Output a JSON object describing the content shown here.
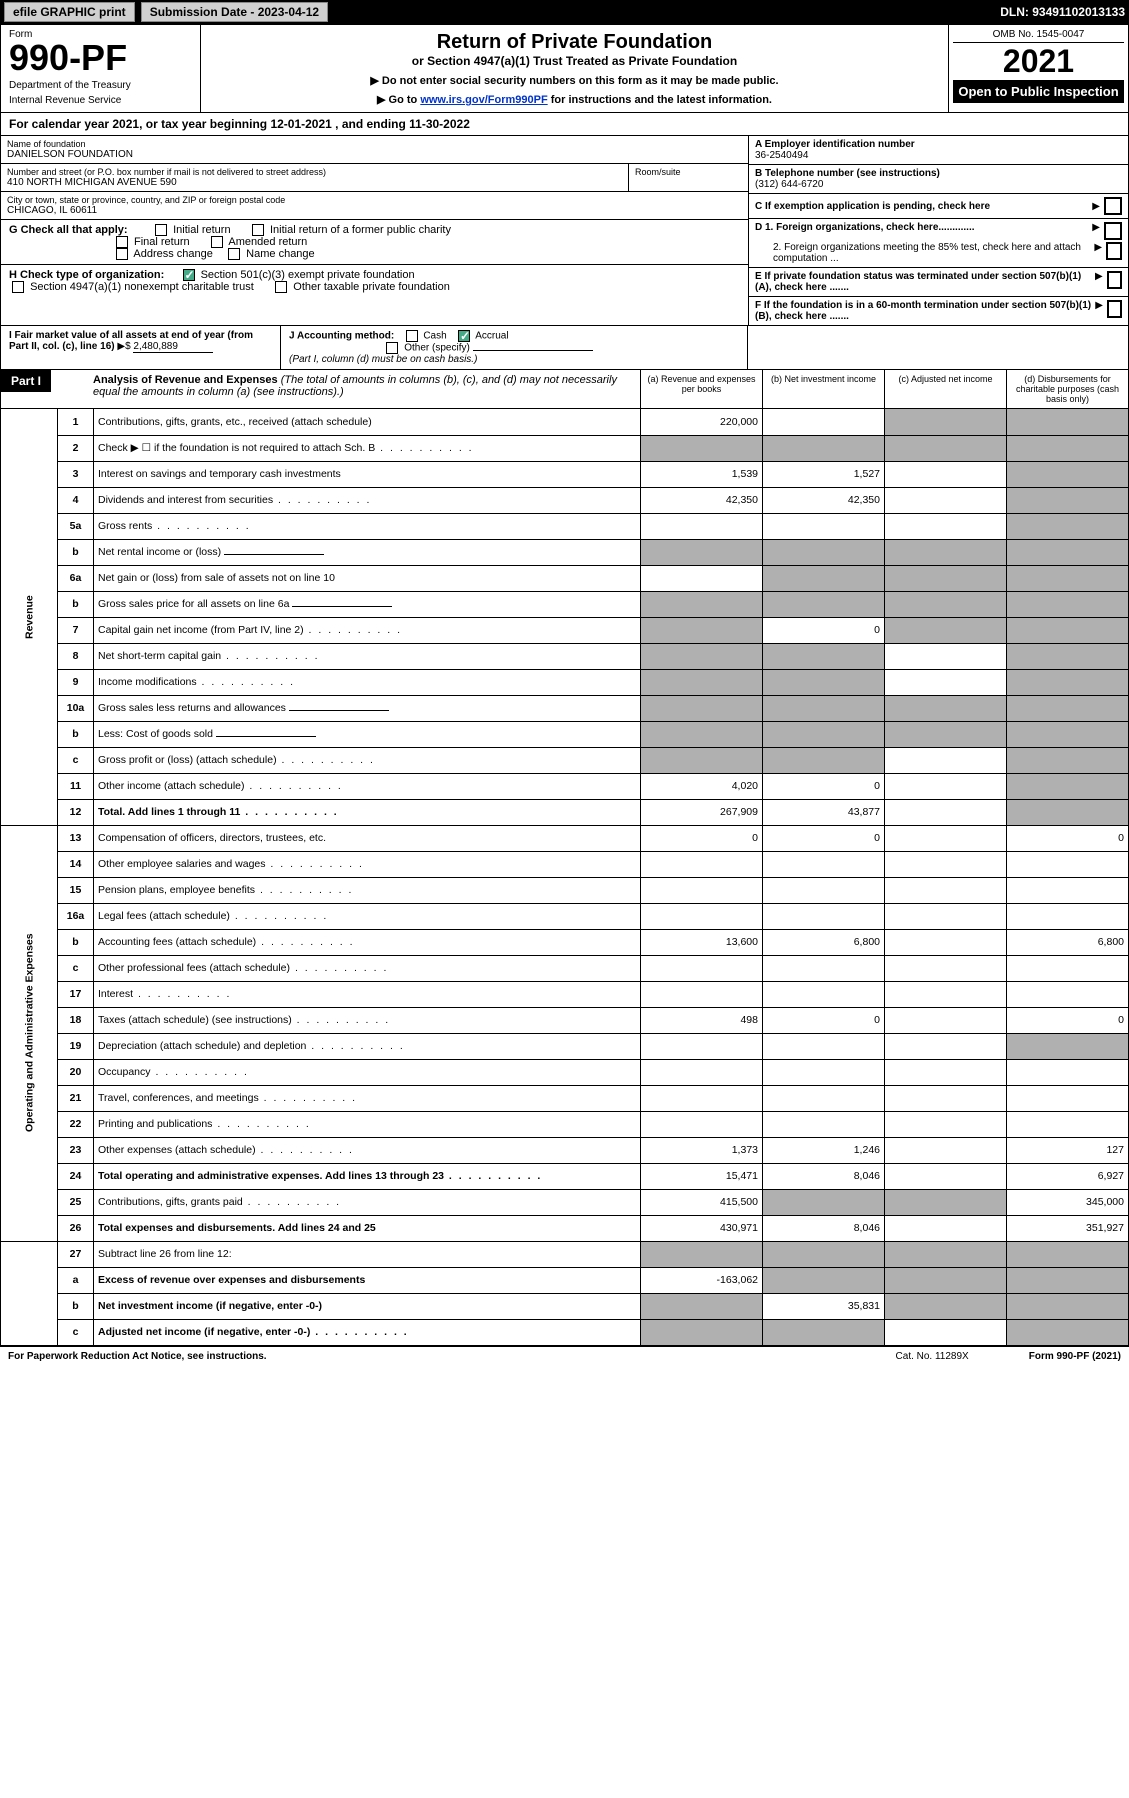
{
  "topbar": {
    "efile": "efile GRAPHIC print",
    "submission": "Submission Date - 2023-04-12",
    "dln": "DLN: 93491102013133"
  },
  "header": {
    "form_label": "Form",
    "form_num": "990-PF",
    "dept": "Department of the Treasury",
    "irs": "Internal Revenue Service",
    "title": "Return of Private Foundation",
    "subtitle": "or Section 4947(a)(1) Trust Treated as Private Foundation",
    "note1": "▶ Do not enter social security numbers on this form as it may be made public.",
    "note2_pre": "▶ Go to ",
    "note2_link": "www.irs.gov/Form990PF",
    "note2_post": " for instructions and the latest information.",
    "omb": "OMB No. 1545-0047",
    "year": "2021",
    "inspect": "Open to Public Inspection"
  },
  "calyear": "For calendar year 2021, or tax year beginning 12-01-2021                   , and ending 11-30-2022",
  "foundation": {
    "name_label": "Name of foundation",
    "name": "DANIELSON FOUNDATION",
    "addr_label": "Number and street (or P.O. box number if mail is not delivered to street address)",
    "addr": "410 NORTH MICHIGAN AVENUE 590",
    "room_label": "Room/suite",
    "city_label": "City or town, state or province, country, and ZIP or foreign postal code",
    "city": "CHICAGO, IL  60611",
    "ein_label": "A Employer identification number",
    "ein": "36-2540494",
    "phone_label": "B Telephone number (see instructions)",
    "phone": "(312) 644-6720",
    "c_label": "C If exemption application is pending, check here",
    "d1": "D 1. Foreign organizations, check here.............",
    "d2": "2. Foreign organizations meeting the 85% test, check here and attach computation ...",
    "e_label": "E  If private foundation status was terminated under section 507(b)(1)(A), check here .......",
    "f_label": "F  If the foundation is in a 60-month termination under section 507(b)(1)(B), check here .......",
    "g_label": "G Check all that apply:",
    "g_opts": [
      "Initial return",
      "Initial return of a former public charity",
      "Final return",
      "Amended return",
      "Address change",
      "Name change"
    ],
    "h_label": "H Check type of organization:",
    "h_opt1": "Section 501(c)(3) exempt private foundation",
    "h_opt2": "Section 4947(a)(1) nonexempt charitable trust",
    "h_opt3": "Other taxable private foundation",
    "i_label": "I Fair market value of all assets at end of year (from Part II, col. (c), line 16)",
    "i_value": "2,480,889",
    "j_label": "J Accounting method:",
    "j_cash": "Cash",
    "j_accrual": "Accrual",
    "j_other": "Other (specify)",
    "j_note": "(Part I, column (d) must be on cash basis.)"
  },
  "part1": {
    "title": "Part I",
    "heading": "Analysis of Revenue and Expenses",
    "heading_note": " (The total of amounts in columns (b), (c), and (d) may not necessarily equal the amounts in column (a) (see instructions).)",
    "col_a": "(a)   Revenue and expenses per books",
    "col_b": "(b)   Net investment income",
    "col_c": "(c)   Adjusted net income",
    "col_d": "(d)  Disbursements for charitable purposes (cash basis only)"
  },
  "side_labels": {
    "revenue": "Revenue",
    "expenses": "Operating and Administrative Expenses"
  },
  "rows": [
    {
      "n": "1",
      "d": "Contributions, gifts, grants, etc., received (attach schedule)",
      "a": "220,000",
      "b": "",
      "c": "shaded",
      "dd": "shaded"
    },
    {
      "n": "2",
      "d": "Check ▶ ☐ if the foundation is not required to attach Sch. B",
      "a": "shaded",
      "b": "shaded",
      "c": "shaded",
      "dd": "shaded",
      "dots": true
    },
    {
      "n": "3",
      "d": "Interest on savings and temporary cash investments",
      "a": "1,539",
      "b": "1,527",
      "c": "",
      "dd": "shaded"
    },
    {
      "n": "4",
      "d": "Dividends and interest from securities",
      "a": "42,350",
      "b": "42,350",
      "c": "",
      "dd": "shaded",
      "dots": true
    },
    {
      "n": "5a",
      "d": "Gross rents",
      "a": "",
      "b": "",
      "c": "",
      "dd": "shaded",
      "dots": true
    },
    {
      "n": "b",
      "d": "Net rental income or (loss)",
      "a": "shaded",
      "b": "shaded",
      "c": "shaded",
      "dd": "shaded",
      "inline": true
    },
    {
      "n": "6a",
      "d": "Net gain or (loss) from sale of assets not on line 10",
      "a": "",
      "b": "shaded",
      "c": "shaded",
      "dd": "shaded"
    },
    {
      "n": "b",
      "d": "Gross sales price for all assets on line 6a",
      "a": "shaded",
      "b": "shaded",
      "c": "shaded",
      "dd": "shaded",
      "inline": true
    },
    {
      "n": "7",
      "d": "Capital gain net income (from Part IV, line 2)",
      "a": "shaded",
      "b": "0",
      "c": "shaded",
      "dd": "shaded",
      "dots": true
    },
    {
      "n": "8",
      "d": "Net short-term capital gain",
      "a": "shaded",
      "b": "shaded",
      "c": "",
      "dd": "shaded",
      "dots": true
    },
    {
      "n": "9",
      "d": "Income modifications",
      "a": "shaded",
      "b": "shaded",
      "c": "",
      "dd": "shaded",
      "dots": true
    },
    {
      "n": "10a",
      "d": "Gross sales less returns and allowances",
      "a": "shaded",
      "b": "shaded",
      "c": "shaded",
      "dd": "shaded",
      "inline": true
    },
    {
      "n": "b",
      "d": "Less: Cost of goods sold",
      "a": "shaded",
      "b": "shaded",
      "c": "shaded",
      "dd": "shaded",
      "inline": true,
      "dots": true
    },
    {
      "n": "c",
      "d": "Gross profit or (loss) (attach schedule)",
      "a": "shaded",
      "b": "shaded",
      "c": "",
      "dd": "shaded",
      "dots": true
    },
    {
      "n": "11",
      "d": "Other income (attach schedule)",
      "a": "4,020",
      "b": "0",
      "c": "",
      "dd": "shaded",
      "dots": true
    },
    {
      "n": "12",
      "d": "Total. Add lines 1 through 11",
      "a": "267,909",
      "b": "43,877",
      "c": "",
      "dd": "shaded",
      "bold": true,
      "dots": true
    }
  ],
  "exp_rows": [
    {
      "n": "13",
      "d": "Compensation of officers, directors, trustees, etc.",
      "a": "0",
      "b": "0",
      "c": "",
      "dd": "0"
    },
    {
      "n": "14",
      "d": "Other employee salaries and wages",
      "a": "",
      "b": "",
      "c": "",
      "dd": "",
      "dots": true
    },
    {
      "n": "15",
      "d": "Pension plans, employee benefits",
      "a": "",
      "b": "",
      "c": "",
      "dd": "",
      "dots": true
    },
    {
      "n": "16a",
      "d": "Legal fees (attach schedule)",
      "a": "",
      "b": "",
      "c": "",
      "dd": "",
      "dots": true
    },
    {
      "n": "b",
      "d": "Accounting fees (attach schedule)",
      "a": "13,600",
      "b": "6,800",
      "c": "",
      "dd": "6,800",
      "dots": true
    },
    {
      "n": "c",
      "d": "Other professional fees (attach schedule)",
      "a": "",
      "b": "",
      "c": "",
      "dd": "",
      "dots": true
    },
    {
      "n": "17",
      "d": "Interest",
      "a": "",
      "b": "",
      "c": "",
      "dd": "",
      "dots": true
    },
    {
      "n": "18",
      "d": "Taxes (attach schedule) (see instructions)",
      "a": "498",
      "b": "0",
      "c": "",
      "dd": "0",
      "dots": true
    },
    {
      "n": "19",
      "d": "Depreciation (attach schedule) and depletion",
      "a": "",
      "b": "",
      "c": "",
      "dd": "shaded",
      "dots": true
    },
    {
      "n": "20",
      "d": "Occupancy",
      "a": "",
      "b": "",
      "c": "",
      "dd": "",
      "dots": true
    },
    {
      "n": "21",
      "d": "Travel, conferences, and meetings",
      "a": "",
      "b": "",
      "c": "",
      "dd": "",
      "dots": true
    },
    {
      "n": "22",
      "d": "Printing and publications",
      "a": "",
      "b": "",
      "c": "",
      "dd": "",
      "dots": true
    },
    {
      "n": "23",
      "d": "Other expenses (attach schedule)",
      "a": "1,373",
      "b": "1,246",
      "c": "",
      "dd": "127",
      "dots": true
    },
    {
      "n": "24",
      "d": "Total operating and administrative expenses. Add lines 13 through 23",
      "a": "15,471",
      "b": "8,046",
      "c": "",
      "dd": "6,927",
      "bold": true,
      "dots": true
    },
    {
      "n": "25",
      "d": "Contributions, gifts, grants paid",
      "a": "415,500",
      "b": "shaded",
      "c": "shaded",
      "dd": "345,000",
      "dots": true
    },
    {
      "n": "26",
      "d": "Total expenses and disbursements. Add lines 24 and 25",
      "a": "430,971",
      "b": "8,046",
      "c": "",
      "dd": "351,927",
      "bold": true
    }
  ],
  "final_rows": [
    {
      "n": "27",
      "d": "Subtract line 26 from line 12:",
      "a": "shaded",
      "b": "shaded",
      "c": "shaded",
      "dd": "shaded"
    },
    {
      "n": "a",
      "d": "Excess of revenue over expenses and disbursements",
      "a": "-163,062",
      "b": "shaded",
      "c": "shaded",
      "dd": "shaded",
      "bold": true
    },
    {
      "n": "b",
      "d": "Net investment income (if negative, enter -0-)",
      "a": "shaded",
      "b": "35,831",
      "c": "shaded",
      "dd": "shaded",
      "bold": true
    },
    {
      "n": "c",
      "d": "Adjusted net income (if negative, enter -0-)",
      "a": "shaded",
      "b": "shaded",
      "c": "",
      "dd": "shaded",
      "bold": true,
      "dots": true
    }
  ],
  "footer": {
    "left": "For Paperwork Reduction Act Notice, see instructions.",
    "cat": "Cat. No. 11289X",
    "right": "Form 990-PF (2021)"
  }
}
